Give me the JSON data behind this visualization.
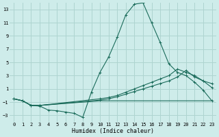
{
  "background_color": "#ceecea",
  "grid_color": "#aed4d0",
  "line_color": "#1a6b5a",
  "xlabel": "Humidex (Indice chaleur)",
  "xlim": [
    -0.5,
    23.5
  ],
  "ylim": [
    -4,
    14
  ],
  "yticks": [
    -3,
    -1,
    1,
    3,
    5,
    7,
    9,
    11,
    13
  ],
  "xticks": [
    0,
    1,
    2,
    3,
    4,
    5,
    6,
    7,
    8,
    9,
    10,
    11,
    12,
    13,
    14,
    15,
    16,
    17,
    18,
    19,
    20,
    21,
    22,
    23
  ],
  "curve1_x": [
    0,
    1,
    2,
    3,
    4,
    5,
    6,
    7,
    8,
    9,
    10,
    11,
    12,
    13,
    14,
    15,
    16,
    17,
    18,
    19,
    20,
    21,
    22,
    23
  ],
  "curve1_y": [
    -0.5,
    -0.8,
    -1.5,
    -1.6,
    -2.2,
    -2.3,
    -2.5,
    -2.7,
    -3.3,
    0.5,
    3.5,
    5.8,
    8.8,
    12.2,
    13.8,
    14.0,
    11.0,
    8.0,
    4.8,
    3.5,
    3.0,
    2.0,
    0.8,
    -0.8
  ],
  "curve2_x": [
    0,
    1,
    2,
    3,
    10,
    11,
    12,
    13,
    14,
    15,
    16,
    17,
    18,
    19,
    20,
    21,
    22,
    23
  ],
  "curve2_y": [
    -0.5,
    -0.8,
    -1.5,
    -1.5,
    -0.5,
    -0.3,
    0.0,
    0.5,
    1.0,
    1.5,
    2.0,
    2.5,
    3.0,
    4.0,
    3.5,
    3.0,
    2.2,
    1.2
  ],
  "curve3_x": [
    0,
    1,
    2,
    3,
    10,
    11,
    12,
    13,
    14,
    15,
    16,
    17,
    18,
    19,
    20,
    21,
    22,
    23
  ],
  "curve3_y": [
    -0.5,
    -0.8,
    -1.5,
    -1.5,
    -0.7,
    -0.5,
    -0.2,
    0.2,
    0.6,
    1.0,
    1.4,
    1.8,
    2.2,
    2.8,
    3.8,
    2.8,
    2.2,
    1.8
  ],
  "curve4_x": [
    0,
    1,
    2,
    3,
    10,
    11,
    12,
    13,
    14,
    15,
    16,
    17,
    18,
    19,
    20,
    21,
    22,
    23
  ],
  "curve4_y": [
    -0.5,
    -0.8,
    -1.5,
    -1.5,
    -0.8,
    -0.8,
    -0.8,
    -0.8,
    -0.8,
    -0.8,
    -0.8,
    -0.8,
    -0.8,
    -0.8,
    -0.8,
    -0.8,
    -0.8,
    -0.8
  ]
}
